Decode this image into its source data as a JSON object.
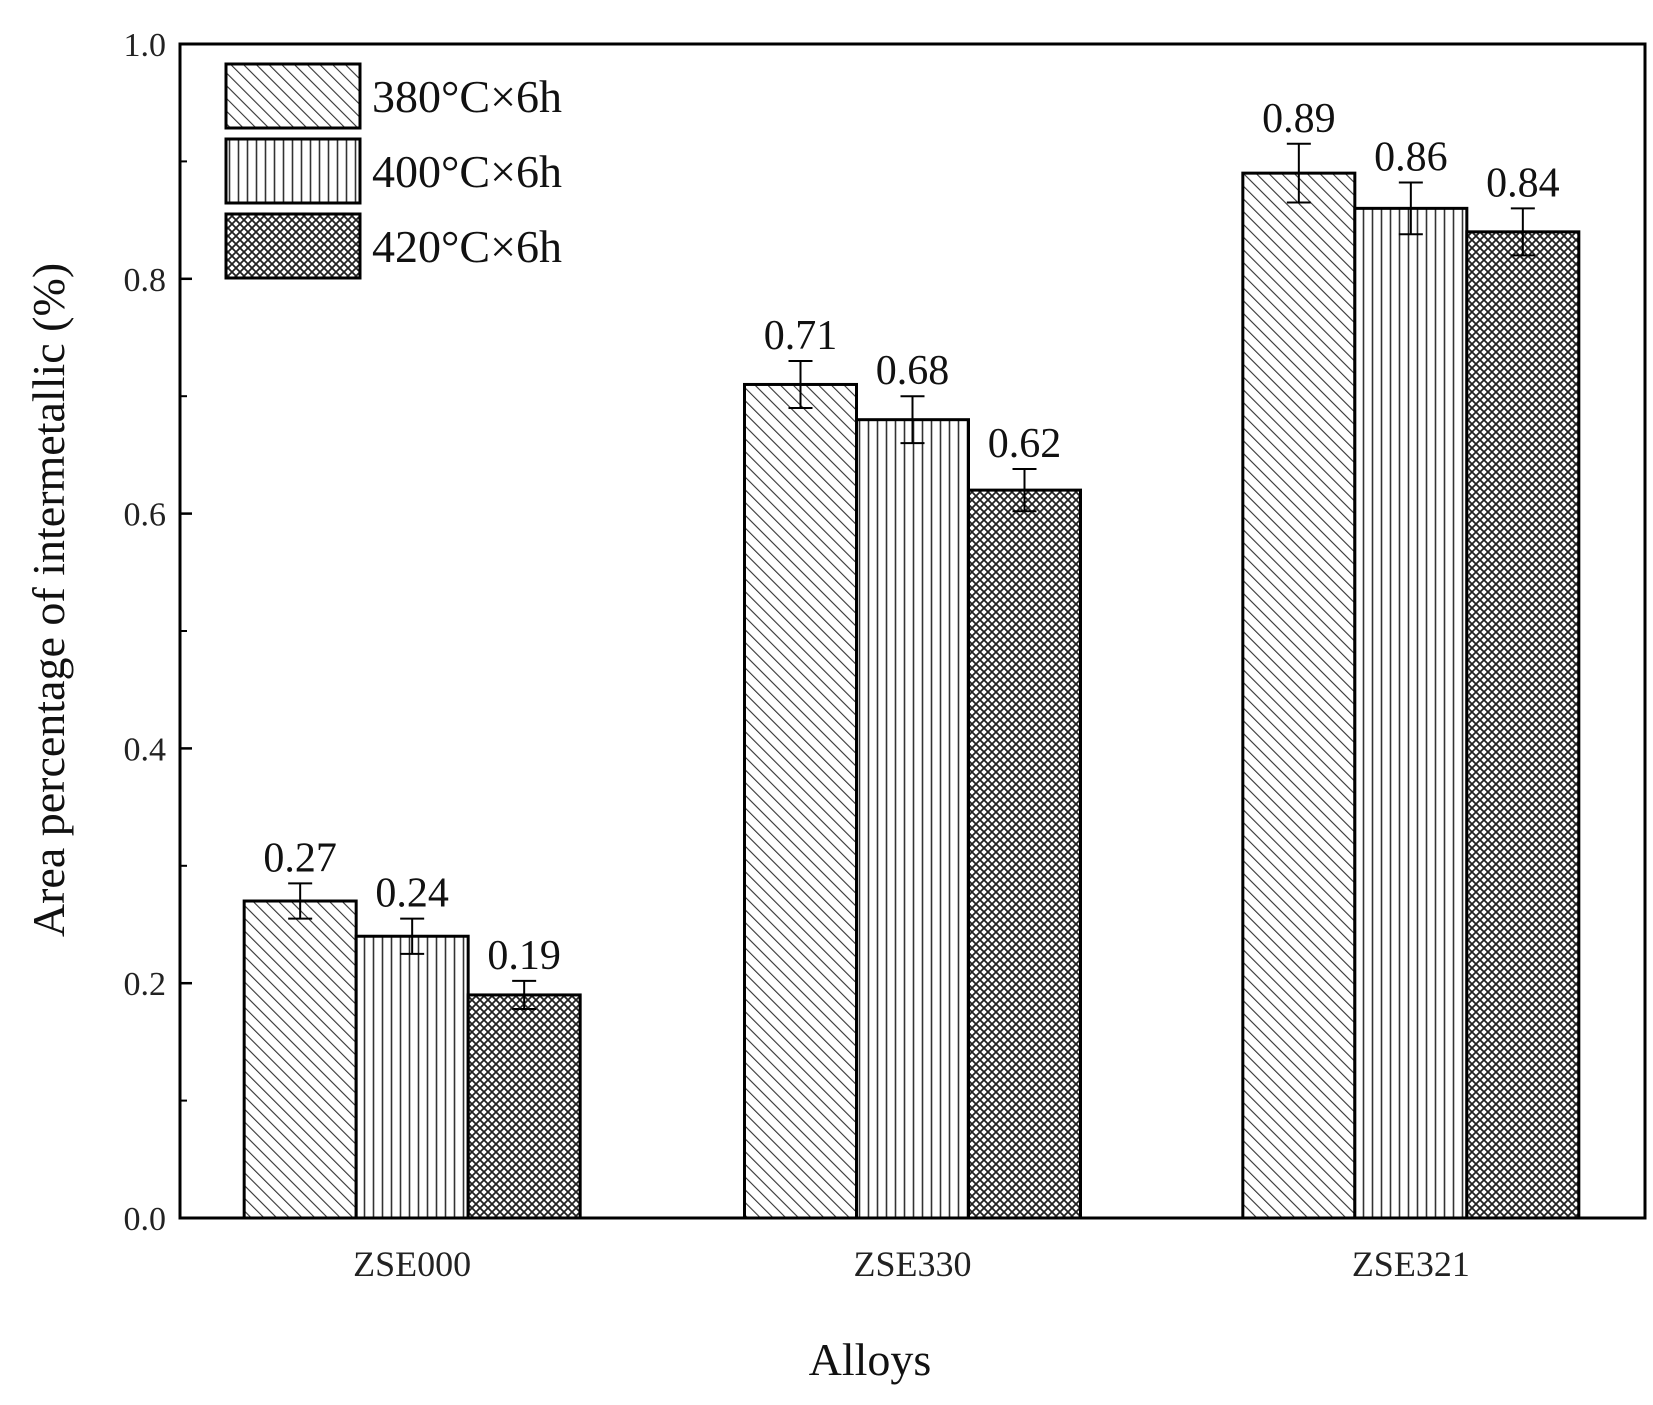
{
  "chart_data": {
    "type": "bar",
    "categories": [
      "ZSE000",
      "ZSE330",
      "ZSE321"
    ],
    "series": [
      {
        "name": "380°C×6h",
        "pattern": "diagonal-hatch",
        "values": [
          0.27,
          0.71,
          0.89
        ],
        "errors": [
          0.015,
          0.02,
          0.025
        ]
      },
      {
        "name": "400°C×6h",
        "pattern": "vertical-lines",
        "values": [
          0.24,
          0.68,
          0.86
        ],
        "errors": [
          0.015,
          0.02,
          0.022
        ]
      },
      {
        "name": "420°C×6h",
        "pattern": "crosshatch",
        "values": [
          0.19,
          0.62,
          0.84
        ],
        "errors": [
          0.012,
          0.018,
          0.02
        ]
      }
    ],
    "data_labels": [
      [
        "0.27",
        "0.71",
        "0.89"
      ],
      [
        "0.24",
        "0.68",
        "0.86"
      ],
      [
        "0.19",
        "0.62",
        "0.84"
      ]
    ],
    "xlabel": "Alloys",
    "ylabel": "Area percentage of intermetallic (%)",
    "ylim": [
      0.0,
      1.0
    ],
    "yticks": [
      "0.0",
      "0.2",
      "0.4",
      "0.6",
      "0.8",
      "1.0"
    ],
    "legend_position": "top-left",
    "grid": false,
    "colors": {
      "bar_edge": "#000000",
      "hatch": "#333333",
      "background": "#ffffff"
    }
  }
}
